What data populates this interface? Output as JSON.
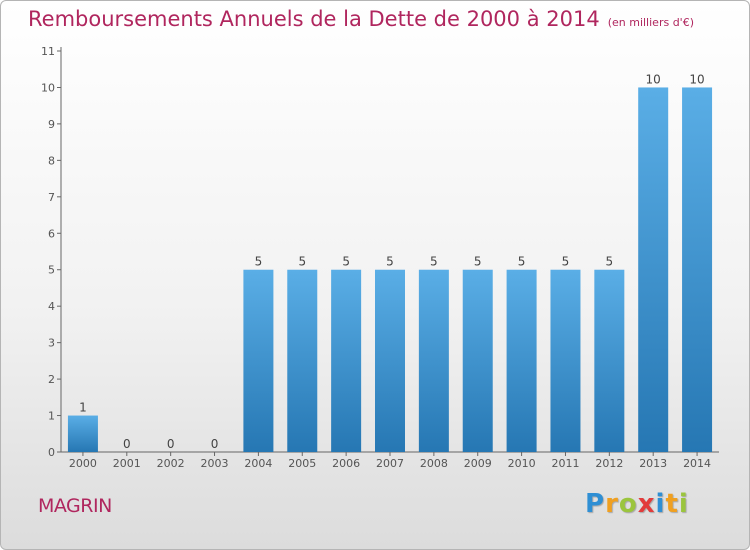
{
  "chart_data": {
    "type": "bar",
    "title": "Remboursements Annuels de la Dette de 2000 à 2014",
    "unit": "(en milliers d'€)",
    "categories": [
      "2000",
      "2001",
      "2002",
      "2003",
      "2004",
      "2005",
      "2006",
      "2007",
      "2008",
      "2009",
      "2010",
      "2011",
      "2012",
      "2013",
      "2014"
    ],
    "values": [
      1,
      0,
      0,
      0,
      5,
      5,
      5,
      5,
      5,
      5,
      5,
      5,
      5,
      10,
      10
    ],
    "ylim": [
      0,
      11
    ],
    "yticks": [
      0,
      1,
      2,
      3,
      4,
      5,
      6,
      7,
      8,
      9,
      10,
      11
    ],
    "xlabel": "",
    "ylabel": "",
    "grid": false,
    "bar_color_top": "#5aaee6",
    "bar_color_bottom": "#2677b3"
  },
  "commune": "MAGRIN",
  "logo": {
    "letters": [
      "P",
      "r",
      "o",
      "x",
      "i",
      "t",
      "i"
    ],
    "colors": [
      "#2f8fd4",
      "#f0a020",
      "#9bc53d",
      "#e23c3c",
      "#2f8fd4",
      "#f0a020",
      "#9bc53d"
    ]
  }
}
